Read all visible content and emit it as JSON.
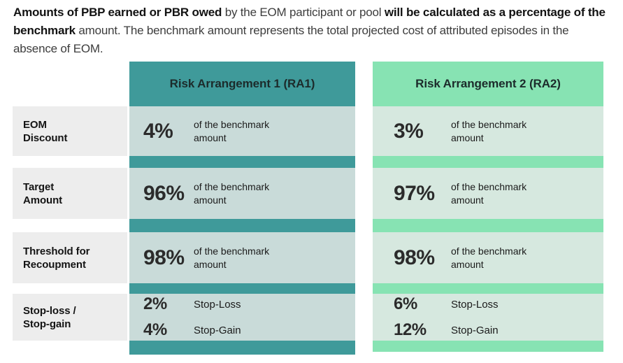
{
  "intro": {
    "bold1": "Amounts of PBP earned or PBR owed",
    "text1": " by the EOM participant or pool ",
    "bold2": "will be calculated as a percentage of the benchmark",
    "text2": " amount. The benchmark amount represents the total projected cost of attributed episodes in the absence of EOM."
  },
  "colors": {
    "ra1_header_bg": "#3F9A9A",
    "ra1_cell_bg": "#C9DBD9",
    "ra2_header_bg": "#87E3B3",
    "ra2_cell_bg": "#D6E8DF",
    "row_band_bg": "#EDEDED"
  },
  "table": {
    "columns": [
      {
        "label": "Risk Arrangement 1 (RA1)"
      },
      {
        "label": "Risk Arrangement 2 (RA2)"
      }
    ],
    "rows": [
      {
        "label": "EOM\nDiscount",
        "ra1": {
          "value": "4%",
          "desc": "of the benchmark\namount"
        },
        "ra2": {
          "value": "3%",
          "desc": "of the benchmark\namount"
        }
      },
      {
        "label": "Target\nAmount",
        "ra1": {
          "value": "96%",
          "desc": "of the benchmark\namount"
        },
        "ra2": {
          "value": "97%",
          "desc": "of the benchmark\namount"
        }
      },
      {
        "label": "Threshold for\nRecoupment",
        "ra1": {
          "value": "98%",
          "desc": "of the benchmark\namount"
        },
        "ra2": {
          "value": "98%",
          "desc": "of the benchmark\namount"
        }
      },
      {
        "label": "Stop-loss /\nStop-gain",
        "ra1": {
          "items": [
            {
              "value": "2%",
              "label": "Stop-Loss"
            },
            {
              "value": "4%",
              "label": "Stop-Gain"
            }
          ]
        },
        "ra2": {
          "items": [
            {
              "value": "6%",
              "label": "Stop-Loss"
            },
            {
              "value": "12%",
              "label": "Stop-Gain"
            }
          ]
        }
      }
    ]
  }
}
